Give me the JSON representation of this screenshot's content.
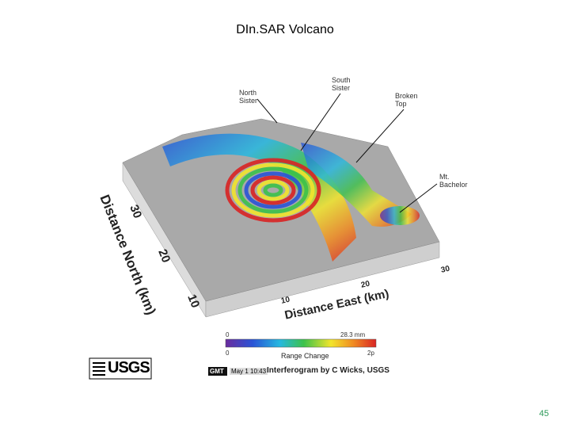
{
  "header": {
    "title": "DIn.SAR Volcano"
  },
  "figure": {
    "labels": [
      "North Sister",
      "South Sister",
      "Broken Top",
      "Mt. Bachelor"
    ],
    "north_axis": {
      "title": "Distance North (km)",
      "ticks": [
        "30",
        "20",
        "10"
      ]
    },
    "east_axis": {
      "title": "Distance East (km)",
      "ticks": [
        "10",
        "20",
        "30"
      ]
    },
    "colorbar": {
      "min_top": "0",
      "max_top": "28.3 mm",
      "min_bottom": "0",
      "max_bottom": "2p",
      "label": "Range Change"
    },
    "logo": "USGS",
    "stamp": {
      "gmt": "GMT",
      "date": "May 1 10:43"
    },
    "credit": "Interferogram by C Wicks, USGS"
  },
  "page_number": "45"
}
